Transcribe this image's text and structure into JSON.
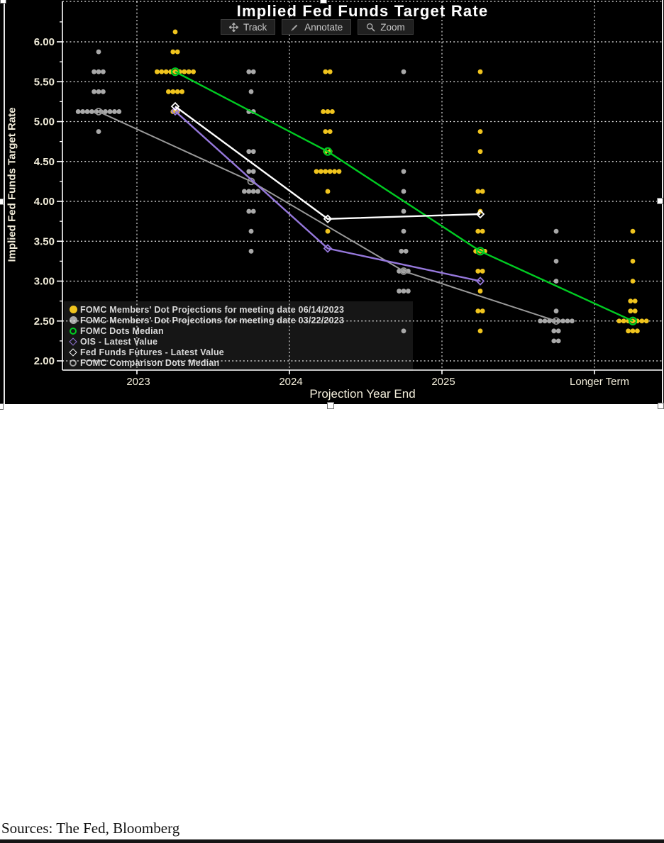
{
  "page": {
    "sources": "Sources: The Fed, Bloomberg"
  },
  "chart_ui": {
    "toolbar": [
      {
        "icon": "track-icon",
        "label": "Track"
      },
      {
        "icon": "annotate-icon",
        "label": "Annotate"
      },
      {
        "icon": "zoom-icon",
        "label": "Zoom"
      }
    ]
  },
  "chart_data": {
    "type": "scatter",
    "title": "Implied Fed Funds Target Rate",
    "xlabel": "Projection Year End",
    "ylabel": "Implied Fed Funds Target Rate",
    "categories": [
      "2023",
      "2024",
      "2025",
      "Longer Term"
    ],
    "ylim": [
      2.0,
      6.0
    ],
    "y_tick_step": 0.5,
    "y_minor_tick_step": 0.25,
    "y_tick_labels": [
      "6.00",
      "5.50",
      "5.00",
      "4.50",
      "4.00",
      "3.50",
      "3.00",
      "2.50",
      "2.00"
    ],
    "grid": "dotted",
    "legend_position": "bottom-left",
    "colors": {
      "fomc_june_dots": "#f0c41e",
      "fomc_march_dots": "#a9a9a9",
      "fomc_median": "#00cc22",
      "ois": "#9678dc",
      "futures": "#ffffff",
      "comparison_median": "#9a9a9a"
    },
    "dot_series": [
      {
        "name": "FOMC Members' Dot Projections for meeting date 03/22/2023",
        "color": "#a9a9a9",
        "offset": "left",
        "dots": [
          [
            [
              5.875,
              1
            ],
            [
              5.625,
              3
            ],
            [
              5.375,
              3
            ],
            [
              5.125,
              10
            ],
            [
              4.875,
              1
            ]
          ],
          [
            [
              5.625,
              2
            ],
            [
              5.375,
              1
            ],
            [
              5.125,
              2
            ],
            [
              4.625,
              2
            ],
            [
              4.375,
              2
            ],
            [
              4.125,
              4
            ],
            [
              3.875,
              2
            ],
            [
              3.625,
              1
            ],
            [
              3.375,
              1
            ]
          ],
          [
            [
              5.625,
              1
            ],
            [
              4.375,
              1
            ],
            [
              4.125,
              1
            ],
            [
              3.875,
              1
            ],
            [
              3.625,
              1
            ],
            [
              3.375,
              2
            ],
            [
              3.125,
              3
            ],
            [
              2.875,
              3
            ],
            [
              2.375,
              1
            ]
          ],
          [
            [
              3.625,
              1
            ],
            [
              3.25,
              1
            ],
            [
              3.0,
              1
            ],
            [
              2.625,
              1
            ],
            [
              2.5,
              8
            ],
            [
              2.375,
              2
            ],
            [
              2.25,
              2
            ]
          ]
        ]
      },
      {
        "name": "FOMC Members' Dot Projections for meeting date 06/14/2023",
        "color": "#f0c41e",
        "offset": "right",
        "dots": [
          [
            [
              6.125,
              1
            ],
            [
              5.875,
              2
            ],
            [
              5.625,
              9
            ],
            [
              5.375,
              4
            ],
            [
              5.125,
              2
            ]
          ],
          [
            [
              5.625,
              2
            ],
            [
              5.125,
              3
            ],
            [
              4.875,
              2
            ],
            [
              4.625,
              2
            ],
            [
              4.375,
              6
            ],
            [
              4.125,
              1
            ],
            [
              3.625,
              1
            ]
          ],
          [
            [
              5.625,
              1
            ],
            [
              4.875,
              1
            ],
            [
              4.625,
              1
            ],
            [
              4.125,
              2
            ],
            [
              3.875,
              1
            ],
            [
              3.625,
              2
            ],
            [
              3.375,
              3
            ],
            [
              3.125,
              2
            ],
            [
              2.875,
              1
            ],
            [
              2.625,
              2
            ],
            [
              2.375,
              1
            ]
          ],
          [
            [
              3.625,
              1
            ],
            [
              3.25,
              1
            ],
            [
              3.0,
              1
            ],
            [
              2.75,
              2
            ],
            [
              2.625,
              2
            ],
            [
              2.5,
              7
            ],
            [
              2.375,
              3
            ]
          ]
        ]
      }
    ],
    "line_series": [
      {
        "name": "FOMC Comparison Dots Median",
        "color": "#9a9a9a",
        "marker": "open-circle",
        "column": "left",
        "values": [
          5.125,
          4.25,
          3.125,
          2.5
        ]
      },
      {
        "name": "FOMC Dots Median",
        "color": "#00cc22",
        "marker": "circle",
        "column": "right",
        "values": [
          5.625,
          4.625,
          3.375,
          2.5
        ]
      },
      {
        "name": "OIS - Latest Value",
        "color": "#9678dc",
        "marker": "diamond",
        "column": "right",
        "values": [
          5.13,
          3.41,
          3.0,
          null
        ]
      },
      {
        "name": "Fed Funds Futures - Latest Value",
        "color": "#ffffff",
        "marker": "diamond",
        "column": "right",
        "values": [
          5.19,
          3.78,
          3.84,
          null
        ]
      }
    ],
    "legend": [
      {
        "marker": "dot",
        "color": "#f0c41e",
        "label": "FOMC Members' Dot Projections for meeting date 06/14/2023"
      },
      {
        "marker": "dot",
        "color": "#a9a9a9",
        "label": "FOMC Members' Dot Projections for meeting date 03/22/2023"
      },
      {
        "marker": "circle",
        "color": "#00cc22",
        "label": "FOMC Dots Median"
      },
      {
        "marker": "diamond",
        "color": "#9678dc",
        "label": "OIS - Latest Value"
      },
      {
        "marker": "diamond",
        "color": "#ffffff",
        "label": "Fed Funds Futures - Latest Value"
      },
      {
        "marker": "circle",
        "color": "#9a9a9a",
        "label": "FOMC Comparison Dots Median"
      }
    ]
  }
}
